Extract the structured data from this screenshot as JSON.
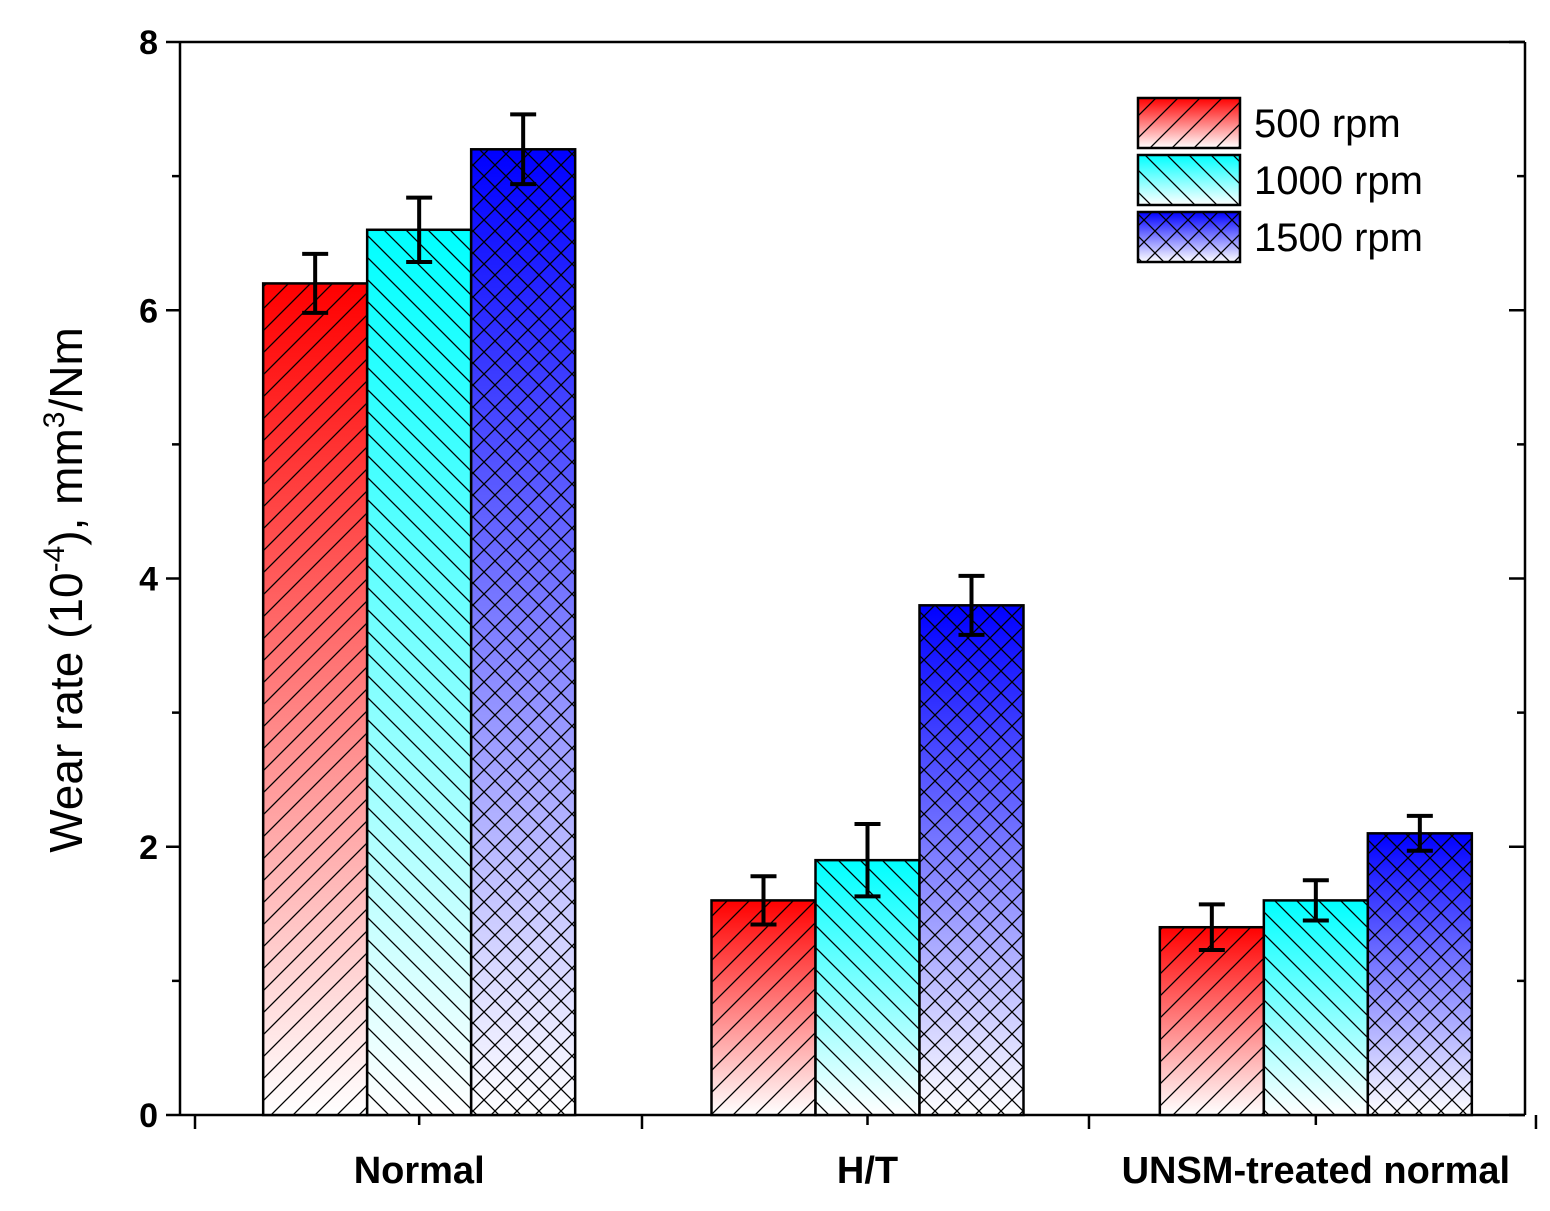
{
  "chart_data": {
    "type": "bar",
    "title": "",
    "xlabel": "",
    "ylabel": {
      "prefix": "Wear rate (10",
      "exp": "-4",
      "mid": "), mm",
      "exp2": "3",
      "suffix": "/Nm"
    },
    "ylim": [
      0,
      8
    ],
    "yticks": [
      "0",
      "2",
      "4",
      "6",
      "8"
    ],
    "categories": [
      "Normal",
      "H/T",
      "UNSM-treated normal"
    ],
    "series": [
      {
        "name": "500 rpm",
        "color": "#ff0000",
        "pattern": "diagonal-forward",
        "values": [
          6.2,
          1.6,
          1.4
        ],
        "errors": [
          0.22,
          0.18,
          0.17
        ]
      },
      {
        "name": "1000 rpm",
        "color": "#00ffff",
        "pattern": "diagonal-backward",
        "values": [
          6.6,
          1.9,
          1.6
        ],
        "errors": [
          0.24,
          0.27,
          0.15
        ]
      },
      {
        "name": "1500 rpm",
        "color": "#0000ff",
        "pattern": "crosshatch",
        "values": [
          7.2,
          3.8,
          2.1
        ],
        "errors": [
          0.26,
          0.22,
          0.13
        ]
      }
    ],
    "legend_position": "top-right",
    "grid": false
  }
}
